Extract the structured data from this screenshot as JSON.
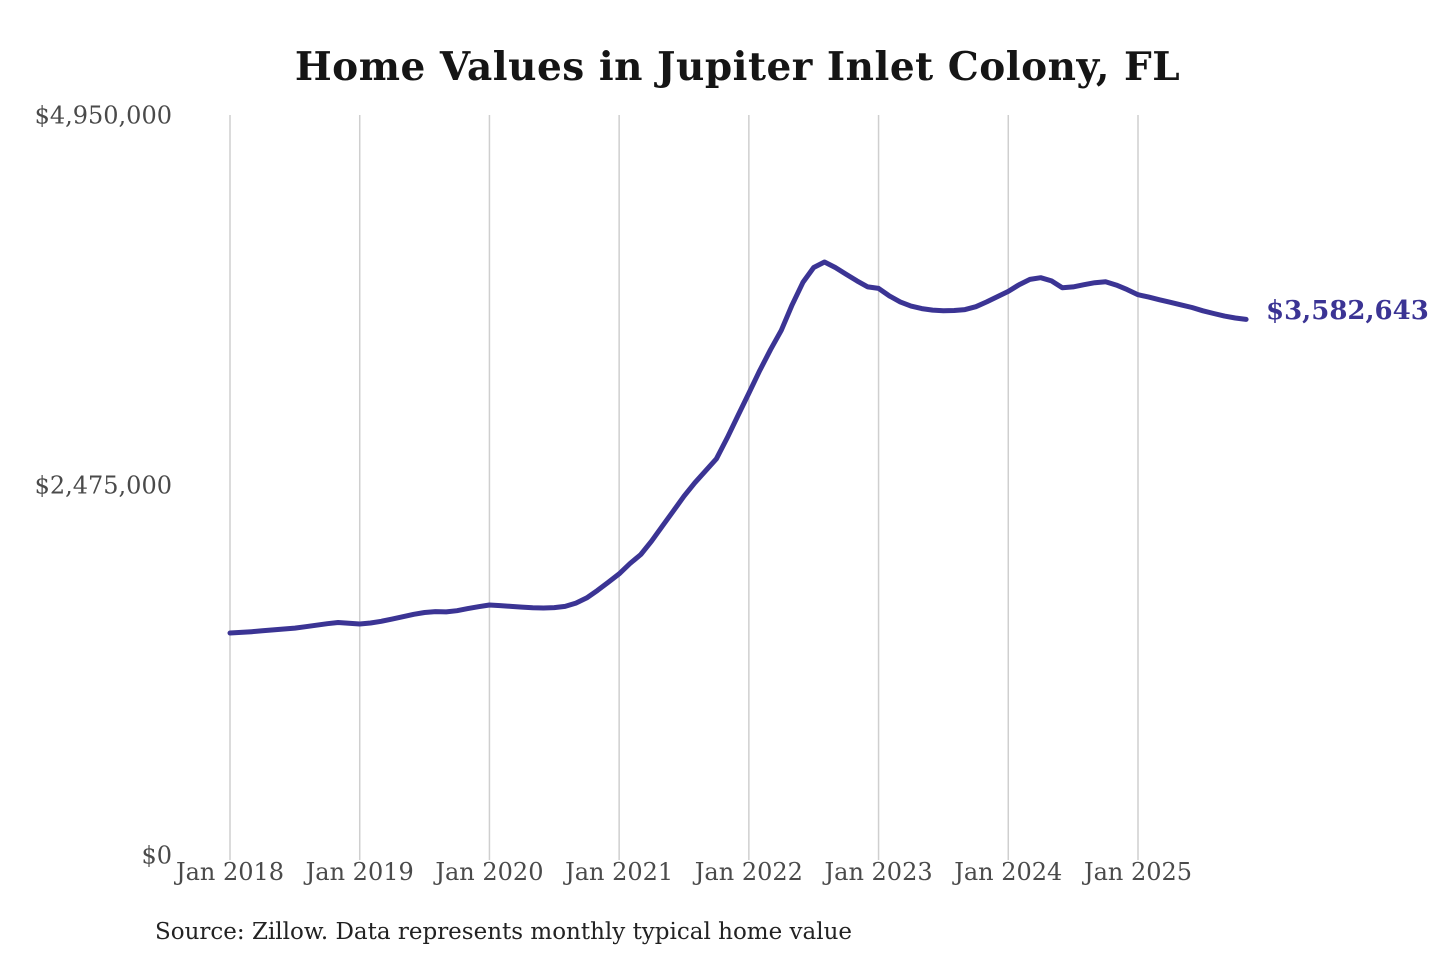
{
  "chart_data": {
    "type": "line",
    "title": "Home Values in Jupiter Inlet Colony, FL",
    "source_note": "Source: Zillow. Data represents monthly typical home value",
    "latest_value": 3582643,
    "latest_value_label": "$3,582,643",
    "x_tick_labels": [
      "Jan 2018",
      "Jan 2019",
      "Jan 2020",
      "Jan 2021",
      "Jan 2022",
      "Jan 2023",
      "Jan 2024",
      "Jan 2025"
    ],
    "y_tick_values": [
      0,
      2475000,
      4950000
    ],
    "y_tick_labels": [
      "$0",
      "$2,475,000",
      "$4,950,000"
    ],
    "ylim": [
      0,
      4950000
    ],
    "grid": "vertical-only",
    "legend": "none",
    "series": [
      {
        "name": "Monthly typical home value",
        "x_start": "Jan 2018",
        "x_end": "Nov 2025",
        "x_interval": "monthly",
        "values": [
          1485000,
          1489000,
          1494000,
          1500000,
          1506000,
          1512000,
          1518000,
          1527000,
          1537000,
          1547000,
          1555000,
          1550000,
          1545000,
          1552000,
          1563000,
          1578000,
          1594000,
          1610000,
          1622000,
          1628000,
          1626000,
          1634000,
          1648000,
          1661000,
          1672000,
          1668000,
          1663000,
          1658000,
          1654000,
          1652000,
          1655000,
          1663000,
          1685000,
          1720000,
          1770000,
          1825000,
          1880000,
          1950000,
          2010000,
          2100000,
          2200000,
          2300000,
          2400000,
          2490000,
          2570000,
          2650000,
          2790000,
          2940000,
          3090000,
          3240000,
          3380000,
          3510000,
          3680000,
          3830000,
          3930000,
          3967000,
          3930000,
          3885000,
          3840000,
          3800000,
          3790000,
          3740000,
          3700000,
          3672000,
          3655000,
          3645000,
          3640000,
          3642000,
          3648000,
          3668000,
          3700000,
          3735000,
          3770000,
          3815000,
          3850000,
          3862000,
          3840000,
          3795000,
          3800000,
          3815000,
          3828000,
          3835000,
          3812000,
          3782000,
          3748000,
          3732000,
          3714000,
          3697000,
          3680000,
          3662000,
          3640000,
          3622000,
          3605000,
          3592000,
          3582643
        ]
      }
    ],
    "colors": {
      "line": "#3b3494",
      "gridline": "#cfcfcf",
      "title_text": "#151515",
      "axis_text": "#4a4a4a",
      "source_text": "#222222",
      "background": "#ffffff"
    }
  }
}
